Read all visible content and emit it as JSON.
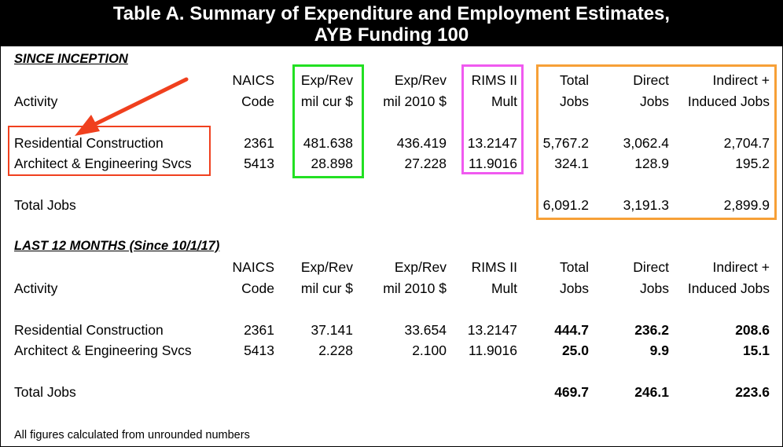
{
  "title": {
    "line1": "Table A.  Summary of Expenditure and Employment Estimates,",
    "line2": "AYB Funding 100"
  },
  "colors": {
    "highlight_red": "#f0401e",
    "highlight_green": "#22e022",
    "highlight_magenta": "#f05af0",
    "highlight_orange": "#f7a037"
  },
  "since_inception": {
    "heading": "SINCE INCEPTION",
    "headers": {
      "activity": "Activity",
      "naics_1": "NAICS",
      "naics_2": "Code",
      "exp_cur_1": "Exp/Rev",
      "exp_cur_2": "mil cur $",
      "exp_2010_1": "Exp/Rev",
      "exp_2010_2": "mil 2010 $",
      "rims_1": "RIMS II",
      "rims_2": "Mult",
      "total_1": "Total",
      "total_2": "Jobs",
      "direct_1": "Direct",
      "direct_2": "Jobs",
      "indirect_1": "Indirect +",
      "indirect_2": "Induced Jobs"
    },
    "rows": [
      {
        "activity": "Residential Construction",
        "naics": "2361",
        "exp_cur": "481.638",
        "exp_2010": "436.419",
        "rims": "13.2147",
        "total": "5,767.2",
        "direct": "3,062.4",
        "indirect": "2,704.7"
      },
      {
        "activity": "Architect & Engineering Svcs",
        "naics": "5413",
        "exp_cur": "28.898",
        "exp_2010": "27.228",
        "rims": "11.9016",
        "total": "324.1",
        "direct": "128.9",
        "indirect": "195.2"
      }
    ],
    "total_row": {
      "label": "Total Jobs",
      "total": "6,091.2",
      "direct": "3,191.3",
      "indirect": "2,899.9"
    }
  },
  "last_12_months": {
    "heading": "LAST 12 MONTHS (Since 10/1/17)",
    "headers": {
      "activity": "Activity",
      "naics_1": "NAICS",
      "naics_2": "Code",
      "exp_cur_1": "Exp/Rev",
      "exp_cur_2": "mil cur $",
      "exp_2010_1": "Exp/Rev",
      "exp_2010_2": "mil 2010 $",
      "rims_1": "RIMS II",
      "rims_2": "Mult",
      "total_1": "Total",
      "total_2": "Jobs",
      "direct_1": "Direct",
      "direct_2": "Jobs",
      "indirect_1": "Indirect +",
      "indirect_2": "Induced Jobs"
    },
    "rows": [
      {
        "activity": "Residential Construction",
        "naics": "2361",
        "exp_cur": "37.141",
        "exp_2010": "33.654",
        "rims": "13.2147",
        "total": "444.7",
        "direct": "236.2",
        "indirect": "208.6"
      },
      {
        "activity": "Architect & Engineering Svcs",
        "naics": "5413",
        "exp_cur": "2.228",
        "exp_2010": "2.100",
        "rims": "11.9016",
        "total": "25.0",
        "direct": "9.9",
        "indirect": "15.1"
      }
    ],
    "total_row": {
      "label": "Total Jobs",
      "total": "469.7",
      "direct": "246.1",
      "indirect": "223.6"
    }
  },
  "footnote": "All figures calculated from unrounded numbers"
}
